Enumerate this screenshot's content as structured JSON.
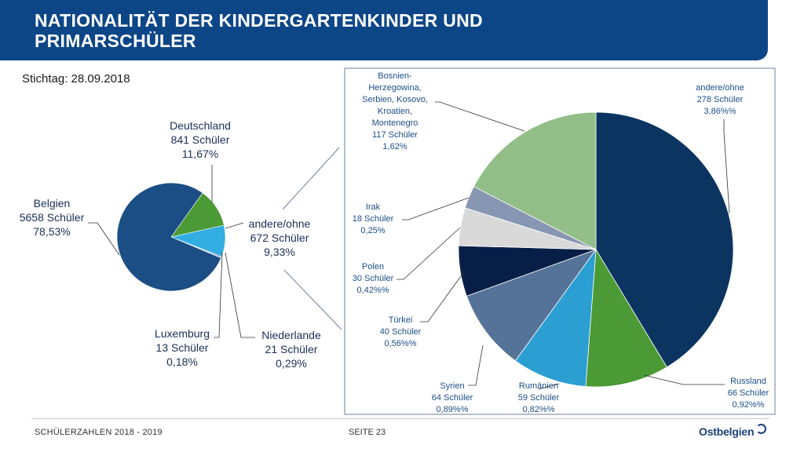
{
  "header": {
    "title_line1": "NATIONALITÄT DER KINDERGARTENKINDER UND",
    "title_line2": "PRIMARSCHÜLER"
  },
  "stichtag": "Stichtag: 28.09.2018",
  "footer": {
    "left": "SCHÜLERZAHLEN 2018 - 2019",
    "page": "SEITE 23",
    "logo": "Ostbelgien"
  },
  "colors": {
    "header": "#0d4686",
    "belgien": "#1c4e86",
    "deutschland": "#4b9a35",
    "andere": "#33aee3",
    "niederlande": "#1f5ea8",
    "luxemburg": "#2b6cc0",
    "andere_ohne": "#0b3461",
    "russland": "#4b9a35",
    "rumaenien": "#2b9ed2",
    "syrien": "#557398",
    "tuerkei": "#071f47",
    "polen": "#d9d9d9",
    "irak": "#8796b2",
    "bosnien": "#92be88"
  },
  "chart_data": [
    {
      "type": "pie",
      "slices": [
        {
          "label": "Belgien",
          "count_text": "5658 Schüler",
          "pct_text": "78,53%",
          "value": 5658
        },
        {
          "label": "Deutschland",
          "count_text": "841 Schüler",
          "pct_text": "11,67%",
          "value": 841
        },
        {
          "label": "andere/ohne",
          "count_text": "672 Schüler",
          "pct_text": "9,33%",
          "value": 672
        },
        {
          "label": "Niederlande",
          "count_text": "21 Schüler",
          "pct_text": "0,29%",
          "value": 21
        },
        {
          "label": "Luxemburg",
          "count_text": "13 Schüler",
          "pct_text": "0,18%",
          "value": 13
        }
      ]
    },
    {
      "type": "pie",
      "slices": [
        {
          "label": "andere/ohne",
          "count_text": "278 Schüler",
          "pct_text": "3,86%%",
          "value": 278
        },
        {
          "label": "Russland",
          "count_text": "66 Schüler",
          "pct_text": "0,92%%",
          "value": 66
        },
        {
          "label": "Rumänien",
          "count_text": "59 Schüler",
          "pct_text": "0,82%%",
          "value": 59
        },
        {
          "label": "Syrien",
          "count_text": "64 Schüler",
          "pct_text": "0,89%%",
          "value": 64
        },
        {
          "label": "Türkei",
          "count_text": "40 Schüler",
          "pct_text": "0,56%%",
          "value": 40
        },
        {
          "label": "Polen",
          "count_text": "30 Schüler",
          "pct_text": "0,42%%",
          "value": 30
        },
        {
          "label": "Irak",
          "count_text": "18 Schüler",
          "pct_text": "0,25%",
          "value": 18
        },
        {
          "label": "Bosnien-Herzegowina, Serbien, Kosovo, Kroatien, Montenegro",
          "label_lines": [
            "Bosnien-",
            "Herzegowina,",
            "Serbien, Kosovo,",
            "Kroatien,",
            "Montenegro"
          ],
          "count_text": "117 Schüler",
          "pct_text": "1,62%",
          "value": 117
        }
      ]
    }
  ]
}
